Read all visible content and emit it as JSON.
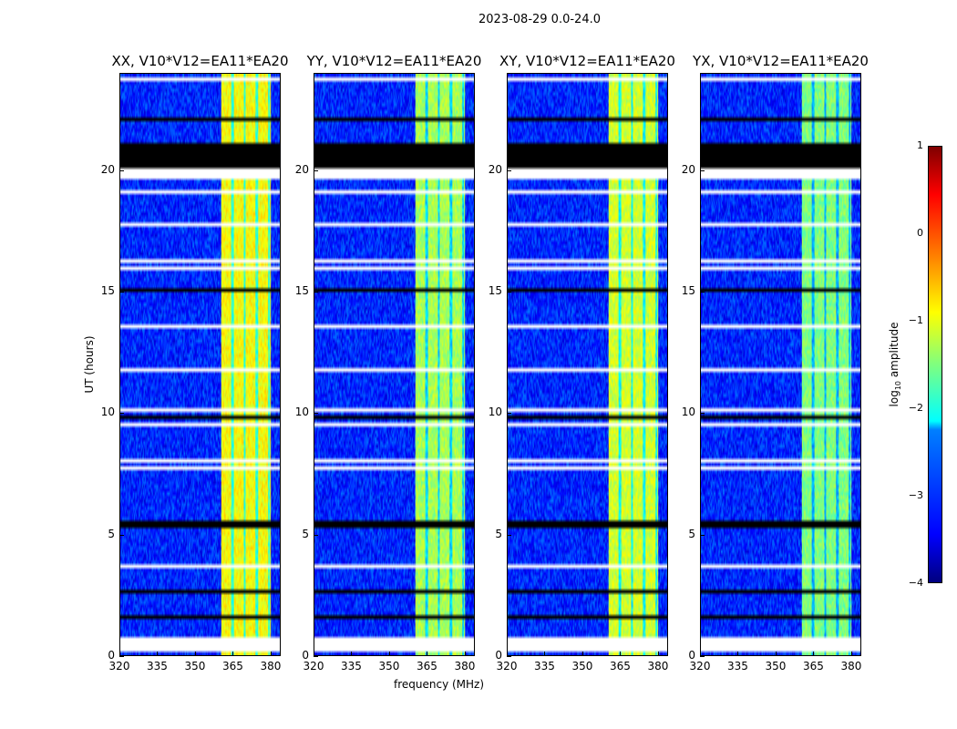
{
  "chart_data": {
    "type": "heatmap",
    "title": "2023-08-29 0.0-24.0",
    "xlabel": "frequency (MHz)",
    "ylabel": "UT (hours)",
    "xlim": [
      320,
      384
    ],
    "ylim": [
      0,
      24
    ],
    "xticks": [
      "320",
      "335",
      "350",
      "365",
      "380"
    ],
    "xtick_values": [
      320,
      335,
      350,
      365,
      380
    ],
    "yticks": [
      "0",
      "5",
      "10",
      "15",
      "20"
    ],
    "ytick_values": [
      0,
      5,
      10,
      15,
      20
    ],
    "panels": [
      {
        "title": "XX, V10*V12=EA11*EA20",
        "band_level": -0.9
      },
      {
        "title": "YY, V10*V12=EA11*EA20",
        "band_level": -1.3
      },
      {
        "title": "XY, V10*V12=EA11*EA20",
        "band_level": -1.1
      },
      {
        "title": "YX, V10*V12=EA11*EA20",
        "band_level": -1.5
      }
    ],
    "bright_band_mhz": [
      360.5,
      380.5
    ],
    "background_level": -3.2,
    "flagged_hours_white": [
      [
        0.2,
        0.75
      ],
      [
        19.6,
        20.1
      ]
    ],
    "flagged_hours_black": [
      [
        20.1,
        21.2
      ]
    ],
    "colorbar": {
      "label_prefix": "log",
      "label_sub": "10",
      "label_suffix": " amplitude",
      "range": [
        -4,
        1
      ],
      "ticks": [
        "1",
        "0",
        "−1",
        "−2",
        "−3",
        "−4"
      ],
      "tick_values": [
        1,
        0,
        -1,
        -2,
        -3,
        -4
      ],
      "colormap": "jet"
    }
  }
}
